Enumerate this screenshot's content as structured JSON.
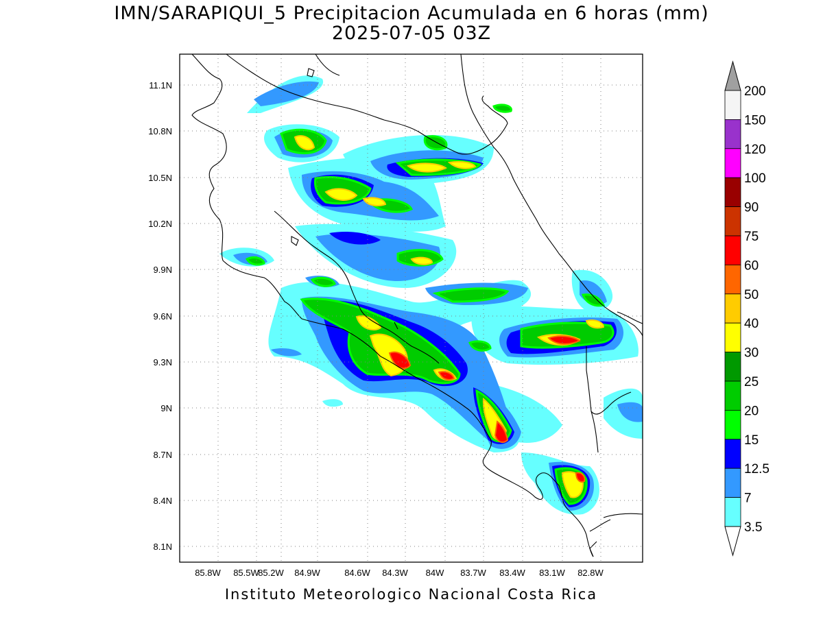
{
  "title": {
    "line1": "IMN/SARAPIQUI_5 Precipitacion Acumulada en 6 horas (mm)",
    "line2": "2025-07-05 03Z"
  },
  "footer": "Instituto Meteorologico Nacional Costa Rica",
  "map": {
    "lon_labels": [
      "85.8W",
      "85.5W",
      "85.2W",
      "84.9W",
      "84.6W",
      "84.3W",
      "84W",
      "83.7W",
      "83.4W",
      "83.1W",
      "82.8W"
    ],
    "lat_labels": [
      "11.1N",
      "10.8N",
      "10.5N",
      "10.2N",
      "9.9N",
      "9.6N",
      "9.3N",
      "9N",
      "8.7N",
      "8.4N",
      "8.1N"
    ],
    "grid": "dotted"
  },
  "colorbar": {
    "labels": [
      "200",
      "150",
      "120",
      "100",
      "90",
      "75",
      "60",
      "50",
      "40",
      "30",
      "25",
      "20",
      "15",
      "12.5",
      "7",
      "3.5"
    ],
    "colors": [
      "#f5f5f5",
      "#9932cc",
      "#ff00ff",
      "#990000",
      "#cc3300",
      "#ff0000",
      "#ff6600",
      "#ffcc00",
      "#ffff00",
      "#009900",
      "#00cc00",
      "#00ff00",
      "#0000ff",
      "#3399ff",
      "#66ffff"
    ],
    "over_color": "#a0a0a0"
  },
  "precip_colors": {
    "c35": "#66ffff",
    "c7": "#3399ff",
    "c125": "#0000ff",
    "c15": "#00ff00",
    "c20": "#00cc00",
    "c25": "#009900",
    "c30": "#ffff00",
    "c40": "#ffcc00",
    "c50": "#ff6600",
    "c60": "#ff0000"
  }
}
